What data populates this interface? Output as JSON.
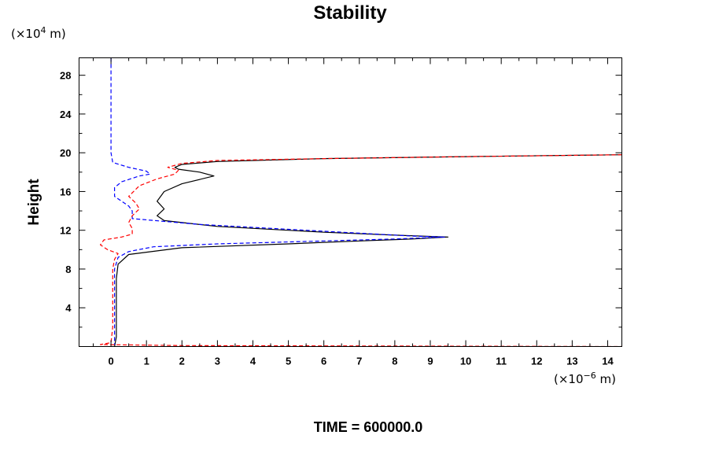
{
  "chart_data": {
    "type": "line",
    "title": "Stability",
    "ylabel": "Height",
    "y_unit": {
      "prefix": "(×10",
      "exp": "4",
      "suffix": " m)"
    },
    "x_unit": {
      "prefix": "(×10",
      "exp": "−6",
      "suffix": " m)"
    },
    "footer": "TIME = 600000.0",
    "xlim": [
      -0.9,
      14.4
    ],
    "ylim": [
      0,
      29.8
    ],
    "x_ticks": [
      "0",
      "1",
      "2",
      "3",
      "4",
      "5",
      "6",
      "7",
      "8",
      "9",
      "10",
      "11",
      "12",
      "13",
      "14"
    ],
    "y_ticks": [
      "4",
      "8",
      "12",
      "16",
      "20",
      "24",
      "28"
    ],
    "grid": false,
    "series": [
      {
        "color": "#000000",
        "dash": "solid",
        "points": [
          [
            0.1,
            0
          ],
          [
            0.15,
            1
          ],
          [
            0.15,
            3
          ],
          [
            0.15,
            5
          ],
          [
            0.15,
            7
          ],
          [
            0.2,
            8.5
          ],
          [
            0.5,
            9.5
          ],
          [
            2,
            10.2
          ],
          [
            5,
            10.6
          ],
          [
            7,
            10.9
          ],
          [
            8.5,
            11.1
          ],
          [
            9.5,
            11.3
          ],
          [
            8,
            11.5
          ],
          [
            6,
            11.8
          ],
          [
            3,
            12.4
          ],
          [
            1.5,
            13
          ],
          [
            1.3,
            13.5
          ],
          [
            1.5,
            14.2
          ],
          [
            1.3,
            15
          ],
          [
            1.5,
            16
          ],
          [
            2,
            16.8
          ],
          [
            2.9,
            17.6
          ],
          [
            2.5,
            18
          ],
          [
            1.9,
            18.3
          ],
          [
            1.8,
            18.5
          ],
          [
            2,
            18.8
          ],
          [
            3,
            19.1
          ],
          [
            6,
            19.4
          ],
          [
            10,
            19.6
          ],
          [
            14.4,
            19.8
          ]
        ]
      },
      {
        "color": "#0000ff",
        "dash": "dashed",
        "points": [
          [
            0,
            29.8
          ],
          [
            0,
            25
          ],
          [
            0,
            22
          ],
          [
            0,
            20
          ],
          [
            0.05,
            19
          ],
          [
            0.5,
            18.5
          ],
          [
            1,
            18.1
          ],
          [
            1.1,
            17.8
          ],
          [
            0.8,
            17.6
          ],
          [
            0.3,
            17
          ],
          [
            0.1,
            16.4
          ],
          [
            0.1,
            15.5
          ],
          [
            0.3,
            15
          ],
          [
            0.5,
            14.5
          ],
          [
            0.6,
            14
          ],
          [
            0.6,
            13.5
          ],
          [
            0.6,
            13.2
          ],
          [
            2.5,
            12.6
          ],
          [
            5,
            12.1
          ],
          [
            7,
            11.7
          ],
          [
            8.5,
            11.4
          ],
          [
            9.4,
            11.3
          ],
          [
            8,
            11.1
          ],
          [
            6,
            10.9
          ],
          [
            3,
            10.6
          ],
          [
            1.2,
            10.3
          ],
          [
            0.5,
            9.8
          ],
          [
            0.2,
            9.2
          ],
          [
            0.1,
            8
          ],
          [
            0.1,
            5
          ],
          [
            0.1,
            2
          ],
          [
            0.1,
            0.2
          ]
        ]
      },
      {
        "color": "#ff0000",
        "dash": "dashed",
        "points": [
          [
            14.4,
            19.8
          ],
          [
            10,
            19.6
          ],
          [
            6,
            19.4
          ],
          [
            3,
            19.2
          ],
          [
            2,
            18.9
          ],
          [
            1.6,
            18.5
          ],
          [
            1.9,
            18.2
          ],
          [
            1.8,
            17.8
          ],
          [
            1.3,
            17.3
          ],
          [
            0.8,
            16.6
          ],
          [
            0.5,
            15.5
          ],
          [
            0.7,
            14.8
          ],
          [
            0.8,
            14.2
          ],
          [
            0.6,
            13.5
          ],
          [
            0.5,
            12.8
          ],
          [
            0.6,
            12.2
          ],
          [
            0.6,
            11.6
          ],
          [
            0.3,
            11.3
          ],
          [
            -0.2,
            11
          ],
          [
            -0.3,
            10.5
          ],
          [
            -0.1,
            10
          ],
          [
            0.2,
            9.6
          ],
          [
            0.1,
            9
          ],
          [
            0.05,
            8
          ],
          [
            0.05,
            5
          ],
          [
            0.05,
            2
          ],
          [
            0,
            0.4
          ],
          [
            -0.3,
            0.2
          ],
          [
            2,
            0.1
          ],
          [
            14.4,
            0
          ]
        ]
      }
    ]
  }
}
